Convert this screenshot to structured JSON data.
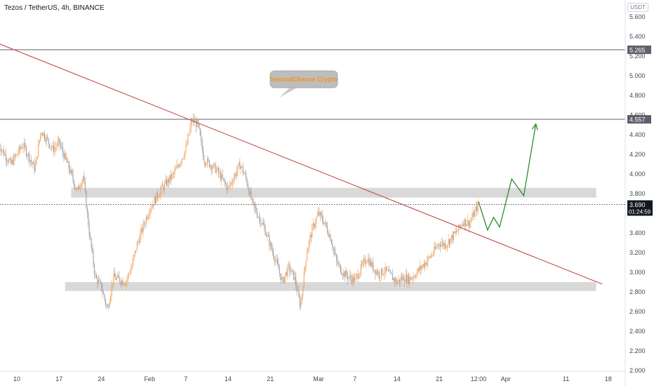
{
  "header": {
    "symbol": "Tezos / TetherUS, 4h, BINANCE",
    "currency": "USDT"
  },
  "annotation": {
    "text": "SecondChance Crypto",
    "color": "#f7931a"
  },
  "colors": {
    "candle_up": "#f5a35c",
    "candle_down": "#9c9ea3",
    "trendline": "#c0504d",
    "projection": "#2e8b2e",
    "zone": "#d9d9d9",
    "level_line": "#5d606b"
  },
  "chart_data": {
    "type": "candlestick",
    "ylim": [
      2.0,
      5.6
    ],
    "y_ticks": [
      "5.600",
      "5.400",
      "5.200",
      "5.000",
      "4.800",
      "4.600",
      "4.400",
      "4.200",
      "4.000",
      "3.800",
      "3.600",
      "3.400",
      "3.200",
      "3.000",
      "2.800",
      "2.600",
      "2.400",
      "2.200",
      "2.000"
    ],
    "x_ticks": [
      {
        "label": "10",
        "date": "Jan 10"
      },
      {
        "label": "17",
        "date": "Jan 17"
      },
      {
        "label": "24",
        "date": "Jan 24"
      },
      {
        "label": "Feb",
        "date": "Feb 1"
      },
      {
        "label": "7",
        "date": "Feb 7"
      },
      {
        "label": "14",
        "date": "Feb 14"
      },
      {
        "label": "21",
        "date": "Feb 21"
      },
      {
        "label": "Mar",
        "date": "Mar 1"
      },
      {
        "label": "7",
        "date": "Mar 7"
      },
      {
        "label": "14",
        "date": "Mar 14"
      },
      {
        "label": "21",
        "date": "Mar 21"
      },
      {
        "label": "12:00",
        "date": "Mar 27 12:00"
      },
      {
        "label": "Apr",
        "date": "Apr 1"
      },
      {
        "label": "11",
        "date": "Apr 11"
      },
      {
        "label": "18",
        "date": "Apr 18"
      }
    ],
    "price_path": [
      [
        "Jan 7",
        4.3
      ],
      [
        "Jan 9",
        4.1
      ],
      [
        "Jan 11",
        4.3
      ],
      [
        "Jan 13",
        4.05
      ],
      [
        "Jan 14",
        4.45
      ],
      [
        "Jan 16",
        4.25
      ],
      [
        "Jan 17",
        4.32
      ],
      [
        "Jan 19",
        4.0
      ],
      [
        "Jan 20",
        3.82
      ],
      [
        "Jan 21",
        3.98
      ],
      [
        "Jan 22",
        3.4
      ],
      [
        "Jan 23",
        2.95
      ],
      [
        "Jan 24",
        2.85
      ],
      [
        "Jan 25",
        2.62
      ],
      [
        "Jan 26",
        2.95
      ],
      [
        "Jan 28",
        2.9
      ],
      [
        "Jan 29",
        3.05
      ],
      [
        "Jan 30",
        3.3
      ],
      [
        "Feb 1",
        3.65
      ],
      [
        "Feb 3",
        3.85
      ],
      [
        "Feb 5",
        4.0
      ],
      [
        "Feb 7",
        4.25
      ],
      [
        "Feb 8",
        4.55
      ],
      [
        "Feb 9",
        4.5
      ],
      [
        "Feb 10",
        4.15
      ],
      [
        "Feb 12",
        4.05
      ],
      [
        "Feb 13",
        3.95
      ],
      [
        "Feb 14",
        3.85
      ],
      [
        "Feb 16",
        4.1
      ],
      [
        "Feb 17",
        3.95
      ],
      [
        "Feb 18",
        3.7
      ],
      [
        "Feb 20",
        3.45
      ],
      [
        "Feb 22",
        3.1
      ],
      [
        "Feb 23",
        2.9
      ],
      [
        "Feb 24",
        3.05
      ],
      [
        "Feb 25",
        2.95
      ],
      [
        "Feb 26",
        2.65
      ],
      [
        "Feb 27",
        3.2
      ],
      [
        "Feb 28",
        3.45
      ],
      [
        "Mar 1",
        3.6
      ],
      [
        "Mar 2",
        3.5
      ],
      [
        "Mar 3",
        3.35
      ],
      [
        "Mar 4",
        3.1
      ],
      [
        "Mar 5",
        3.0
      ],
      [
        "Mar 6",
        2.95
      ],
      [
        "Mar 7",
        2.92
      ],
      [
        "Mar 9",
        3.15
      ],
      [
        "Mar 10",
        3.05
      ],
      [
        "Mar 11",
        2.98
      ],
      [
        "Mar 12",
        3.02
      ],
      [
        "Mar 13",
        2.96
      ],
      [
        "Mar 14",
        2.9
      ],
      [
        "Mar 15",
        2.95
      ],
      [
        "Mar 16",
        2.93
      ],
      [
        "Mar 17",
        2.98
      ],
      [
        "Mar 18",
        3.05
      ],
      [
        "Mar 19",
        3.12
      ],
      [
        "Mar 20",
        3.2
      ],
      [
        "Mar 21",
        3.3
      ],
      [
        "Mar 22",
        3.28
      ],
      [
        "Mar 23",
        3.35
      ],
      [
        "Mar 24",
        3.42
      ],
      [
        "Mar 25",
        3.52
      ],
      [
        "Mar 26",
        3.5
      ],
      [
        "Mar 27 12:00",
        3.69
      ]
    ],
    "projection": [
      [
        "Mar 27 12:00",
        3.72
      ],
      [
        "Mar 29",
        3.43
      ],
      [
        "Mar 30",
        3.56
      ],
      [
        "Mar 31",
        3.46
      ],
      [
        "Apr 2",
        3.95
      ],
      [
        "Apr 4",
        3.78
      ],
      [
        "Apr 6",
        4.51
      ]
    ],
    "trendline": [
      [
        "Jan 2",
        5.45
      ],
      [
        "Apr 17",
        2.88
      ]
    ],
    "zones": [
      {
        "from": "Jan 19",
        "to": "Apr 16",
        "low": 3.76,
        "high": 3.86
      },
      {
        "from": "Jan 18",
        "to": "Apr 16",
        "low": 2.81,
        "high": 2.9
      }
    ],
    "levels": [
      {
        "value": 5.265,
        "label": "5.265"
      },
      {
        "value": 4.557,
        "label": "4.557"
      }
    ],
    "current": {
      "value": 3.69,
      "label": "3.690",
      "countdown": "01:24:59"
    }
  }
}
